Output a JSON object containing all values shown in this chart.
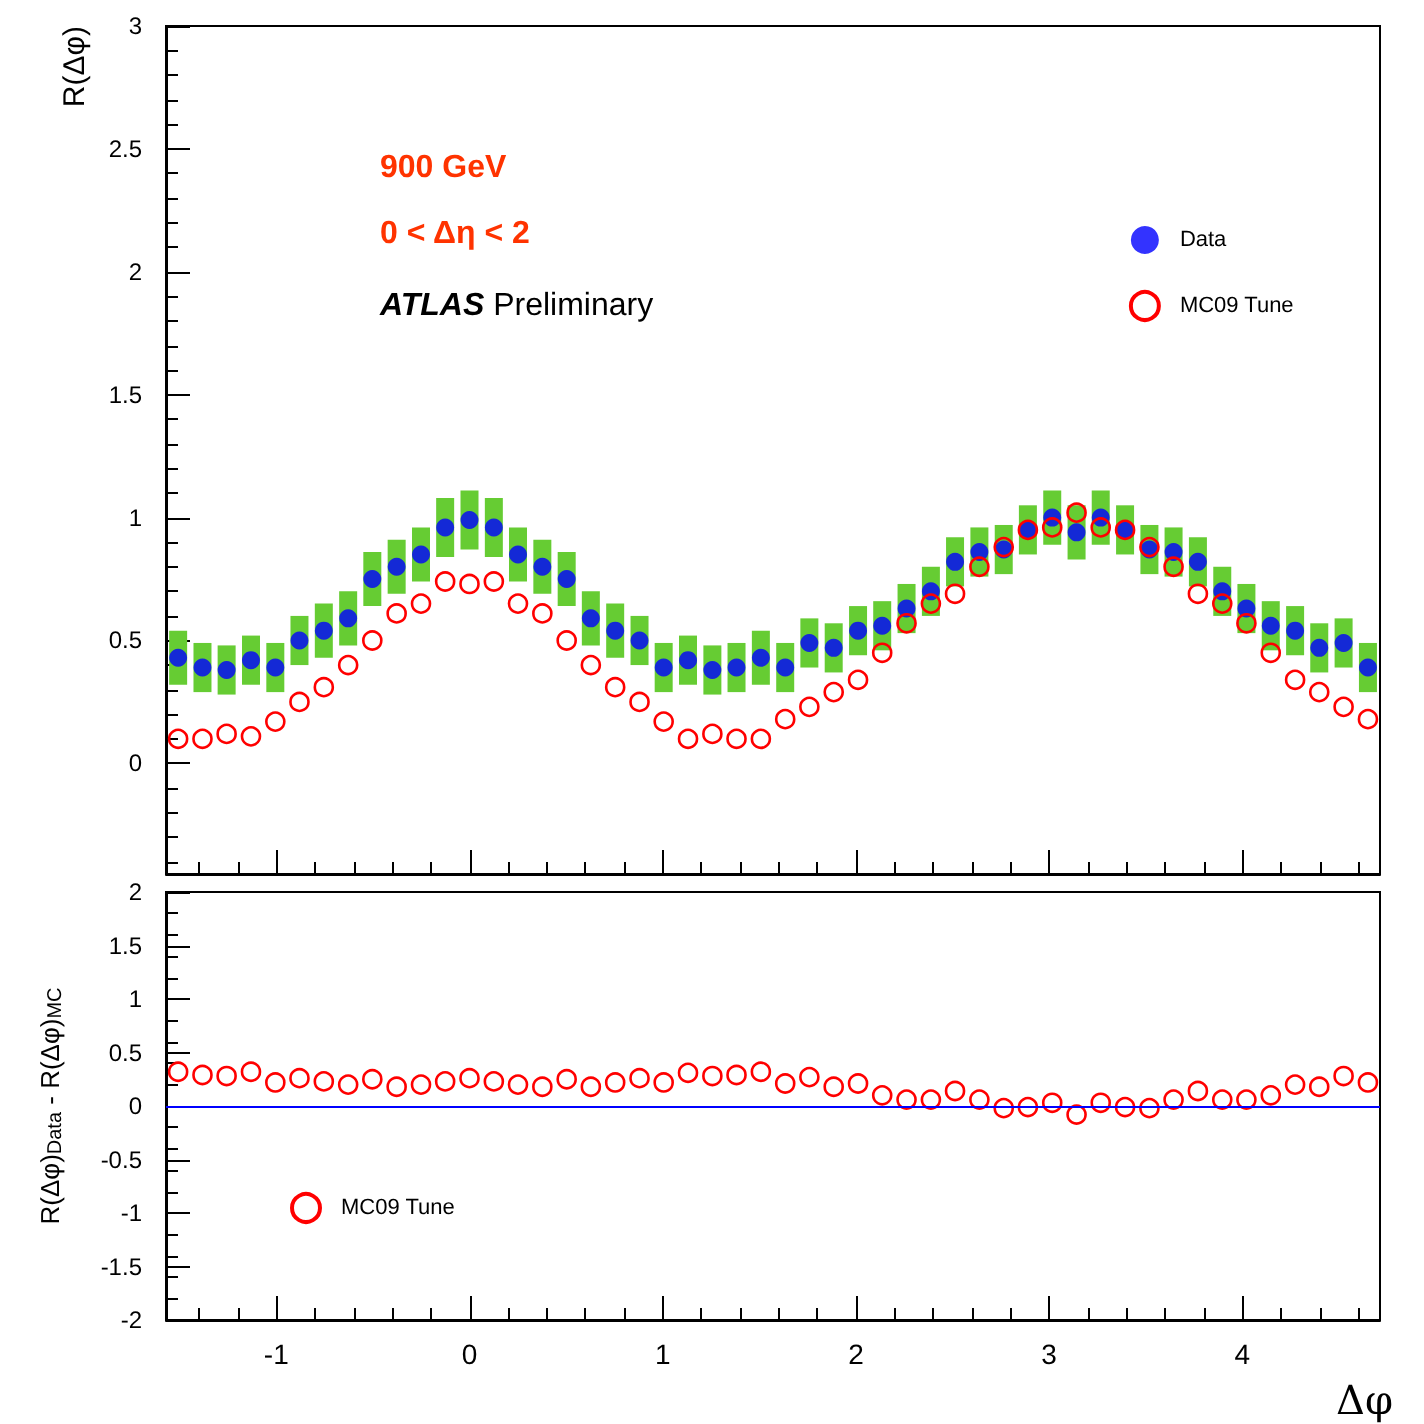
{
  "chart_data": [
    {
      "type": "scatter",
      "ylabel": "R(Δφ)",
      "annotations": [
        "900 GeV",
        "0 < Δη < 2",
        "ATLAS Preliminary"
      ],
      "x": [
        -1.508,
        -1.382,
        -1.257,
        -1.131,
        -1.005,
        -0.88,
        -0.754,
        -0.628,
        -0.503,
        -0.377,
        -0.251,
        -0.126,
        0.0,
        0.126,
        0.251,
        0.377,
        0.503,
        0.628,
        0.754,
        0.88,
        1.005,
        1.131,
        1.257,
        1.382,
        1.508,
        1.634,
        1.759,
        1.885,
        2.011,
        2.136,
        2.262,
        2.388,
        2.513,
        2.639,
        2.765,
        2.89,
        3.016,
        3.142,
        3.267,
        3.393,
        3.519,
        3.644,
        3.77,
        3.896,
        4.021,
        4.147,
        4.273,
        4.398,
        4.524,
        4.65
      ],
      "series": [
        {
          "name": "Data",
          "color": "#0000ff",
          "values": [
            0.43,
            0.39,
            0.38,
            0.42,
            0.39,
            0.5,
            0.54,
            0.59,
            0.75,
            0.8,
            0.85,
            0.96,
            0.99,
            0.96,
            0.85,
            0.8,
            0.75,
            0.59,
            0.54,
            0.5,
            0.39,
            0.42,
            0.38,
            0.39,
            0.43,
            0.39,
            0.49,
            0.47,
            0.54,
            0.56,
            0.63,
            0.7,
            0.82,
            0.86,
            0.87,
            0.95,
            1.0,
            0.94,
            1.0,
            0.95,
            0.87,
            0.86,
            0.82,
            0.7,
            0.63,
            0.56,
            0.54,
            0.47,
            0.49,
            0.39
          ],
          "errors": [
            0.11,
            0.1,
            0.1,
            0.1,
            0.1,
            0.1,
            0.11,
            0.11,
            0.11,
            0.11,
            0.11,
            0.12,
            0.12,
            0.12,
            0.11,
            0.11,
            0.11,
            0.11,
            0.11,
            0.1,
            0.1,
            0.1,
            0.1,
            0.1,
            0.11,
            0.1,
            0.1,
            0.1,
            0.1,
            0.1,
            0.1,
            0.1,
            0.1,
            0.1,
            0.1,
            0.1,
            0.11,
            0.11,
            0.11,
            0.1,
            0.1,
            0.1,
            0.1,
            0.1,
            0.1,
            0.1,
            0.1,
            0.1,
            0.1,
            0.1
          ]
        },
        {
          "name": "MC09 Tune",
          "color": "#ff0000",
          "values": [
            0.1,
            0.1,
            0.12,
            0.11,
            0.17,
            0.25,
            0.31,
            0.4,
            0.5,
            0.61,
            0.65,
            0.74,
            0.73,
            0.74,
            0.65,
            0.61,
            0.5,
            0.4,
            0.31,
            0.25,
            0.17,
            0.1,
            0.12,
            0.1,
            0.1,
            0.18,
            0.23,
            0.29,
            0.34,
            0.45,
            0.57,
            0.65,
            0.69,
            0.8,
            0.88,
            0.95,
            0.96,
            1.02,
            0.96,
            0.95,
            0.88,
            0.8,
            0.69,
            0.65,
            0.57,
            0.45,
            0.34,
            0.29,
            0.23,
            0.18
          ]
        }
      ],
      "xlim": [
        -1.5708,
        4.7124
      ],
      "xticks": [
        -1,
        0,
        1,
        2,
        3,
        4
      ],
      "ylim": [
        -0.45,
        3
      ],
      "yticks": [
        0,
        0.5,
        1,
        1.5,
        2,
        2.5,
        3
      ],
      "tick_labels": "y",
      "legend": "top right",
      "marker": "circle",
      "grid": false
    },
    {
      "type": "scatter",
      "xlabel": "Δφ",
      "ylabel": "R(Δφ)$_{Data}$ - R(Δφ)$_{MC}$",
      "x": [
        -1.508,
        -1.382,
        -1.257,
        -1.131,
        -1.005,
        -0.88,
        -0.754,
        -0.628,
        -0.503,
        -0.377,
        -0.251,
        -0.126,
        0.0,
        0.126,
        0.251,
        0.377,
        0.503,
        0.628,
        0.754,
        0.88,
        1.005,
        1.131,
        1.257,
        1.382,
        1.508,
        1.634,
        1.759,
        1.885,
        2.011,
        2.136,
        2.262,
        2.388,
        2.513,
        2.639,
        2.765,
        2.89,
        3.016,
        3.142,
        3.267,
        3.393,
        3.519,
        3.644,
        3.77,
        3.896,
        4.021,
        4.147,
        4.273,
        4.398,
        4.524,
        4.65
      ],
      "series": [
        {
          "name": "MC09 Tune",
          "color": "#ff0000",
          "values": [
            0.32,
            0.29,
            0.28,
            0.32,
            0.22,
            0.26,
            0.23,
            0.2,
            0.25,
            0.18,
            0.2,
            0.23,
            0.26,
            0.23,
            0.2,
            0.18,
            0.25,
            0.18,
            0.22,
            0.26,
            0.22,
            0.31,
            0.28,
            0.29,
            0.32,
            0.21,
            0.27,
            0.18,
            0.21,
            0.1,
            0.06,
            0.06,
            0.14,
            0.06,
            -0.02,
            -0.01,
            0.03,
            -0.08,
            0.03,
            -0.01,
            -0.02,
            0.06,
            0.14,
            0.06,
            0.06,
            0.1,
            0.2,
            0.18,
            0.28,
            0.22
          ]
        }
      ],
      "ref_lines": [
        {
          "axis": "y",
          "value": 0,
          "color": "#0000ff"
        }
      ],
      "xlim": [
        -1.5708,
        4.7124
      ],
      "xticks": [
        -1,
        0,
        1,
        2,
        3,
        4
      ],
      "ylim": [
        -2,
        2
      ],
      "yticks": [
        -2,
        -1.5,
        -1,
        -0.5,
        0,
        0.5,
        1,
        1.5,
        2
      ],
      "legend": "bottom left",
      "marker": "circle",
      "grid": false
    }
  ]
}
